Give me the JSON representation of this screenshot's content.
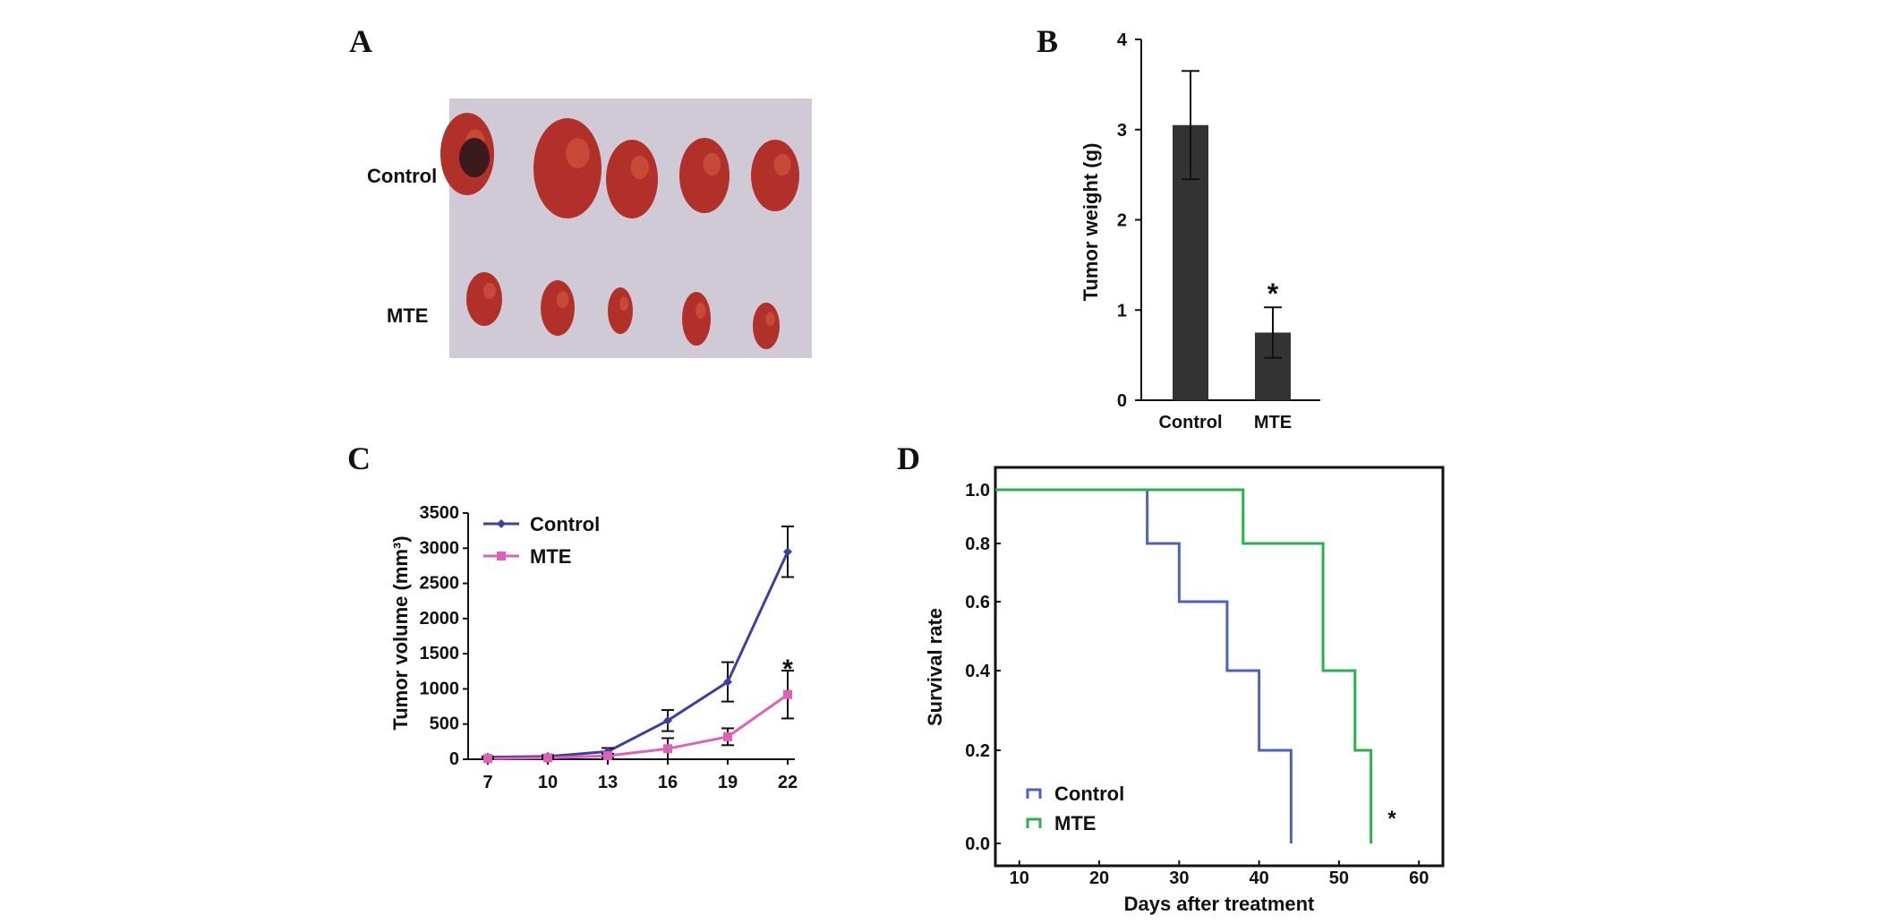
{
  "panels": {
    "a": {
      "label": "A",
      "rows": [
        "Control",
        "MTE"
      ],
      "photo": {
        "background": "#cfcad6",
        "tumor_color": "#b2302a"
      }
    },
    "b": {
      "label": "B"
    },
    "c": {
      "label": "C"
    },
    "d": {
      "label": "D"
    }
  },
  "chart_data": [
    {
      "panel": "B",
      "type": "bar",
      "categories": [
        "Control",
        "MTE"
      ],
      "values": [
        3.05,
        0.75
      ],
      "errors": [
        0.6,
        0.28
      ],
      "ylabel": "Tumor weight (g)",
      "xlabel": "",
      "ylim": [
        0,
        4
      ],
      "yticks": [
        "0",
        "1",
        "2",
        "3",
        "4"
      ],
      "annotations": [
        {
          "category": "MTE",
          "text": "*"
        }
      ],
      "bar_color": "#333333"
    },
    {
      "panel": "C",
      "type": "line",
      "x": [
        7,
        10,
        13,
        16,
        19,
        22
      ],
      "xticks": [
        "7",
        "10",
        "13",
        "16",
        "19",
        "22"
      ],
      "ylabel": "Tumor volume (mm³)",
      "ylim": [
        0,
        3500
      ],
      "yticks": [
        "0",
        "500",
        "1000",
        "1500",
        "2000",
        "2500",
        "3000",
        "3500"
      ],
      "legend_position": "top-left",
      "series": [
        {
          "name": "Control",
          "color": "#3e3fa0",
          "marker": "diamond",
          "values": [
            30,
            40,
            110,
            550,
            1100,
            2950
          ],
          "errors": [
            10,
            20,
            50,
            150,
            280,
            360
          ]
        },
        {
          "name": "MTE",
          "color": "#e060b8",
          "marker": "square",
          "values": [
            10,
            20,
            50,
            150,
            320,
            920
          ],
          "errors": [
            5,
            10,
            30,
            150,
            120,
            340
          ]
        }
      ],
      "annotations": [
        {
          "x": 22,
          "text": "*",
          "color": "#1f5a6b"
        }
      ]
    },
    {
      "panel": "D",
      "type": "line",
      "step": true,
      "xlabel": "Days after treatment",
      "ylabel": "Survival rate",
      "xlim": [
        7,
        63
      ],
      "xticks": [
        "10",
        "20",
        "30",
        "40",
        "50",
        "60"
      ],
      "yticks": [
        "0.0",
        "0.2",
        "0.4",
        "0.6",
        "0.8",
        "1.0"
      ],
      "legend_position": "bottom-left",
      "series": [
        {
          "name": "Control",
          "color": "#4a62c2",
          "x": [
            7,
            26,
            30,
            36,
            40,
            44
          ],
          "values": [
            1.0,
            0.8,
            0.6,
            0.4,
            0.2,
            0.0
          ]
        },
        {
          "name": "MTE",
          "color": "#27b34a",
          "x": [
            7,
            38,
            48,
            52,
            54
          ],
          "values": [
            1.0,
            0.8,
            0.4,
            0.2,
            0.0
          ]
        }
      ],
      "annotations": [
        {
          "text": "*"
        }
      ]
    }
  ]
}
